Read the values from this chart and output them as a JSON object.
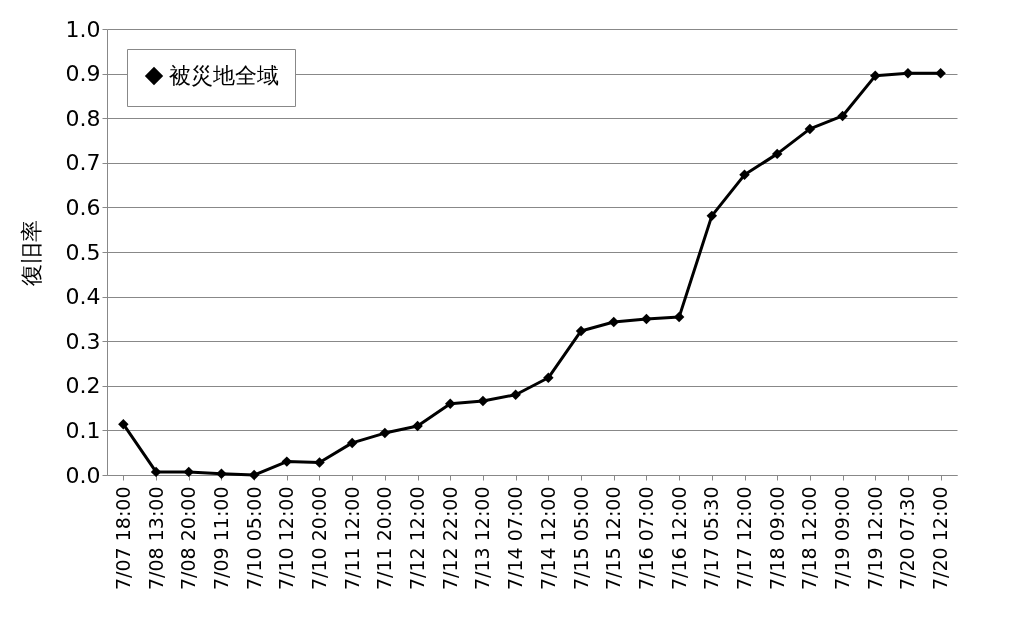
{
  "chart_data": {
    "type": "line",
    "ylabel": "復旧率",
    "categories": [
      "7/07 18:00",
      "7/08 13:00",
      "7/08 20:00",
      "7/09 11:00",
      "7/10 05:00",
      "7/10 12:00",
      "7/10 20:00",
      "7/11 12:00",
      "7/11 20:00",
      "7/12 12:00",
      "7/12 22:00",
      "7/13 12:00",
      "7/14 07:00",
      "7/14 12:00",
      "7/15 05:00",
      "7/15 12:00",
      "7/16 07:00",
      "7/16 12:00",
      "7/17 05:30",
      "7/17 12:00",
      "7/18 09:00",
      "7/18 12:00",
      "7/19 09:00",
      "7/19 12:00",
      "7/20 07:30",
      "7/20 12:00"
    ],
    "series": [
      {
        "name": "被災地全域",
        "color": "#000000",
        "values": [
          0.114,
          0.007,
          0.007,
          0.003,
          0.0,
          0.03,
          0.028,
          0.072,
          0.094,
          0.11,
          0.16,
          0.166,
          0.18,
          0.218,
          0.323,
          0.343,
          0.35,
          0.354,
          0.581,
          0.673,
          0.72,
          0.776,
          0.805,
          0.895,
          0.901,
          0.901
        ]
      }
    ],
    "ylim": [
      0,
      1
    ],
    "yticks": [
      {
        "value": 0,
        "label": "0.0"
      },
      0.1,
      0.2,
      0.3,
      0.4,
      0.5,
      0.6,
      0.7,
      0.8,
      0.9,
      {
        "value": 1,
        "label": "1.0"
      }
    ],
    "grid": "y",
    "legend": "top left",
    "marker": "diamond",
    "line_style": "solid"
  }
}
